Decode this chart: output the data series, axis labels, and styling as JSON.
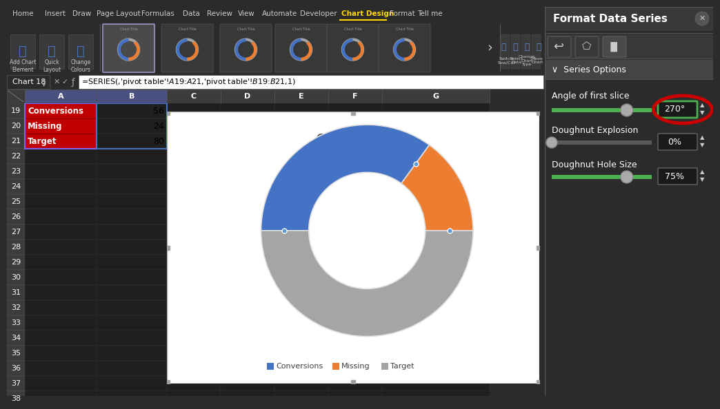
{
  "title": "Chart Title",
  "values": [
    56,
    24,
    80
  ],
  "labels": [
    "Conversions",
    "Missing",
    "Target"
  ],
  "colors": [
    "#4472C4",
    "#ED7D31",
    "#A5A5A5"
  ],
  "bg_color": "#FFFFFF",
  "dark_bg": "#2B2B2B",
  "col_a_labels": [
    "Conversions",
    "Missing",
    "Target"
  ],
  "col_b_values": [
    "56",
    "24",
    "80"
  ],
  "series_option_label": "Series Options",
  "angle_label": "Angle of first slice",
  "explosion_label": "Doughnut Explosion",
  "hole_size_label": "Doughnut Hole Size",
  "angle_value": "270°",
  "explosion_value": "0%",
  "hole_value": "75%",
  "format_title": "Format Data Series",
  "formula_bar_text": "=SERIES(,'pivot table'!$A$19:$A$21,'pivot table'!$B$19:$B$21,1)",
  "chart18": "Chart 18",
  "menu_items": [
    "Home",
    "Insert",
    "Draw",
    "Page Layout",
    "Formulas",
    "Data",
    "Review",
    "View",
    "Automate",
    "Developer",
    "Chart Design",
    "Format",
    "Tell me"
  ],
  "active_menu": "Chart Design",
  "toolbar_right_btns": [
    "Switch\nRow/Column",
    "Select\nData",
    "Change\nChart Type",
    "Move\nChart"
  ]
}
